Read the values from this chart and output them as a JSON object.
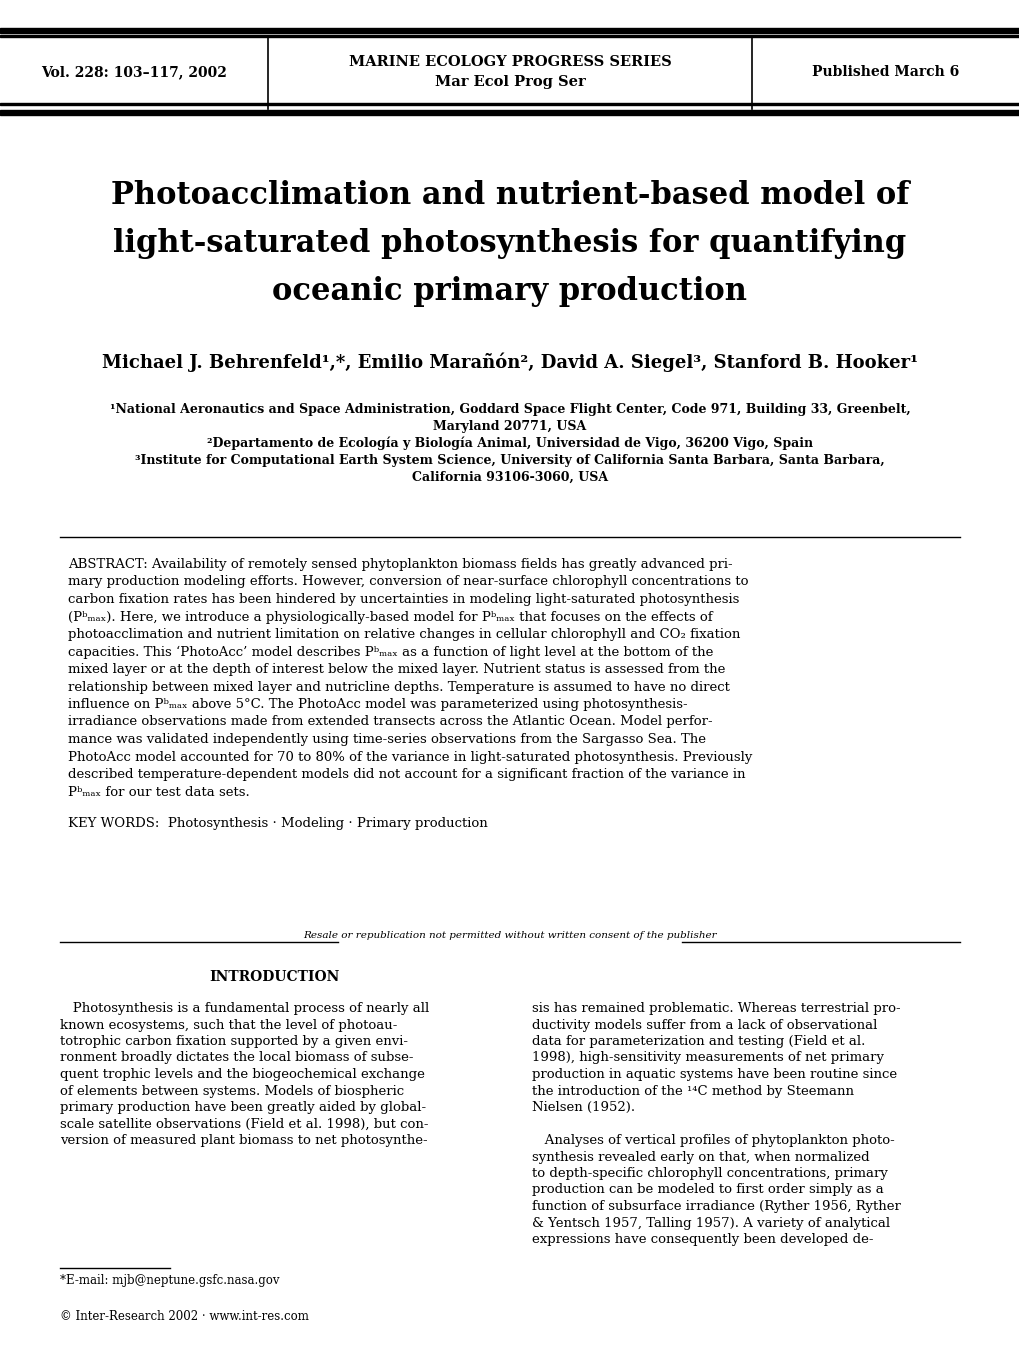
{
  "background_color": "#ffffff",
  "header": {
    "left": "Vol. 228: 103–117, 2002",
    "center_line1": "MARINE ECOLOGY PROGRESS SERIES",
    "center_line2": "Mar Ecol Prog Ser",
    "right": "Published March 6"
  },
  "title_lines": [
    "Photoacclimation and nutrient-based model of",
    "light-saturated photosynthesis for quantifying",
    "oceanic primary production"
  ],
  "authors": "Michael J. Behrenfeld¹,*, Emilio Marañón², David A. Siegel³, Stanford B. Hooker¹",
  "affil1": "¹National Aeronautics and Space Administration, Goddard Space Flight Center, Code 971, Building 33, Greenbelt,",
  "affil1b": "Maryland 20771, USA",
  "affil2": "²Departamento de Ecología y Biología Animal, Universidad de Vigo, 36200 Vigo, Spain",
  "affil3": "³Institute for Computational Earth System Science, University of California Santa Barbara, Santa Barbara,",
  "affil3b": "California 93106-3060, USA",
  "abstract_label": "ABSTRACT:",
  "abstract_text": " Availability of remotely sensed phytoplankton biomass fields has greatly advanced pri-mary production modeling efforts. However, conversion of near-surface chlorophyll concentrations to carbon fixation rates has been hindered by uncertainties in modeling light-saturated photosynthesis (P b max). Here, we introduce a physiologically-based model for P b max that focuses on the effects of photoacclimation and nutrient limitation on relative changes in cellular chlorophyll and CO2 fixation capacities. This ‘PhotoAcc’ model describes P b max as a function of light level at the bottom of the mixed layer or at the depth of interest below the mixed layer. Nutrient status is assessed from the relationship between mixed layer and nutricline depths. Temperature is assumed to have no direct influence on P b max above 5°C. The PhotoAcc model was parameterized using photosynthesis-irradiance observations made from extended transects across the Atlantic Ocean. Model perfor-mance was validated independently using time-series observations from the Sargasso Sea. The PhotoAcc model accounted for 70 to 80% of the variance in light-saturated photosynthesis. Previously described temperature-dependent models did not account for a significant fraction of the variance in P b max for our test data sets.",
  "keywords_label": "KEY WORDS:",
  "keywords_text": "  Photosynthesis · Modeling · Primary production",
  "resale_text": "Resale or republication not permitted without written consent of the publisher",
  "intro_title": "INTRODUCTION",
  "intro_left_para": "   Photosynthesis is a fundamental process of nearly all known ecosystems, such that the level of photoau-totrophic carbon fixation supported by a given envi-ronment broadly dictates the local biomass of subse-quent trophic levels and the biogeochemical exchange of elements between systems. Models of biospheric primary production have been greatly aided by global-scale satellite observations (Field et al. 1998), but con-version of measured plant biomass to net photosynthe-",
  "intro_right_para1": "sis has remained problematic. Whereas terrestrial pro-ductivity models suffer from a lack of observational data for parameterization and testing (Field et al. 1998), high-sensitivity measurements of net primary production in aquatic systems have been routine since the introduction of the ¹⁴C method by Steemann Nielsen (1952).",
  "intro_right_para2": "   Analyses of vertical profiles of phytoplankton photo-synthesis revealed early on that, when normalized to depth-specific chlorophyll concentrations, primary production can be modeled to first order simply as a function of subsurface irradiance (Ryther 1956, Ryther & Yentsch 1957, Talling 1957). A variety of analytical expressions have consequently been developed de-",
  "footnote_email": "*E-mail: mjb@neptune.gsfc.nasa.gov",
  "footnote_copyright": "© Inter-Research 2002 · www.int-res.com"
}
